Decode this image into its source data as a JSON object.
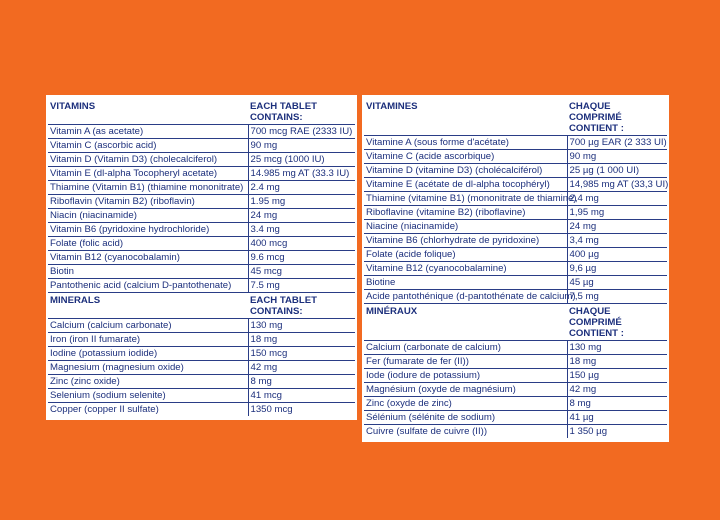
{
  "english": {
    "vitamins_header": "VITAMINS",
    "vitamins_amount_header": "EACH TABLET CONTAINS:",
    "vitamins": [
      [
        "Vitamin A (as acetate)",
        "700 mcg RAE (2333 IU)"
      ],
      [
        "Vitamin C (ascorbic acid)",
        "90 mg"
      ],
      [
        "Vitamin D (Vitamin D3) (cholecalciferol)",
        "25 mcg (1000 IU)"
      ],
      [
        "Vitamin E (dl-alpha Tocopheryl acetate)",
        "14.985 mg AT (33.3 IU)"
      ],
      [
        "Thiamine (Vitamin B1) (thiamine mononitrate)",
        "2.4 mg"
      ],
      [
        "Riboflavin (Vitamin B2) (riboflavin)",
        "1.95 mg"
      ],
      [
        "Niacin (niacinamide)",
        "24 mg"
      ],
      [
        "Vitamin B6 (pyridoxine hydrochloride)",
        "3.4 mg"
      ],
      [
        "Folate (folic acid)",
        "400 mcg"
      ],
      [
        "Vitamin B12 (cyanocobalamin)",
        "9.6 mcg"
      ],
      [
        "Biotin",
        "45 mcg"
      ],
      [
        "Pantothenic acid (calcium D-pantothenate)",
        "7.5 mg"
      ]
    ],
    "minerals_header": "MINERALS",
    "minerals_amount_header": "EACH TABLET CONTAINS:",
    "minerals": [
      [
        "Calcium (calcium carbonate)",
        "130 mg"
      ],
      [
        "Iron (iron II fumarate)",
        "18 mg"
      ],
      [
        "Iodine (potassium iodide)",
        "150 mcg"
      ],
      [
        "Magnesium (magnesium oxide)",
        "42 mg"
      ],
      [
        "Zinc (zinc oxide)",
        "8 mg"
      ],
      [
        "Selenium (sodium selenite)",
        "41 mcg"
      ],
      [
        "Copper (copper II sulfate)",
        "1350 mcg"
      ]
    ]
  },
  "french": {
    "vitamins_header": "VITAMINES",
    "vitamins_amount_header": "CHAQUE COMPRIMÉ CONTIENT :",
    "vitamins": [
      [
        "Vitamine A (sous forme d'acétate)",
        "700 µg EAR (2 333 UI)"
      ],
      [
        "Vitamine C (acide ascorbique)",
        "90 mg"
      ],
      [
        "Vitamine D (vitamine D3) (cholécalciférol)",
        "25 µg (1 000 UI)"
      ],
      [
        "Vitamine E (acétate de dl-alpha tocophéryl)",
        "14,985 mg AT (33,3 UI)"
      ],
      [
        "Thiamine (vitamine B1) (mononitrate de thiamine)",
        "2,4 mg"
      ],
      [
        "Riboflavine (vitamine B2) (riboflavine)",
        "1,95 mg"
      ],
      [
        "Niacine (niacinamide)",
        "24 mg"
      ],
      [
        "Vitamine B6 (chlorhydrate de pyridoxine)",
        "3,4 mg"
      ],
      [
        "Folate (acide folique)",
        "400 µg"
      ],
      [
        "Vitamine B12 (cyanocobalamine)",
        "9,6 µg"
      ],
      [
        "Biotine",
        "45 µg"
      ],
      [
        "Acide pantothénique (d-pantothénate de calcium)",
        "7,5 mg"
      ]
    ],
    "minerals_header": "MINÉRAUX",
    "minerals_amount_header": "CHAQUE COMPRIMÉ CONTIENT :",
    "minerals": [
      [
        "Calcium (carbonate de calcium)",
        "130 mg"
      ],
      [
        "Fer (fumarate de fer (II))",
        "18 mg"
      ],
      [
        "Iode (iodure de potassium)",
        "150 µg"
      ],
      [
        "Magnésium (oxyde de magnésium)",
        "42 mg"
      ],
      [
        "Zinc (oxyde de zinc)",
        "8 mg"
      ],
      [
        "Sélénium (sélénite de sodium)",
        "41 µg"
      ],
      [
        "Cuivre (sulfate de cuivre (II))",
        "1 350 µg"
      ]
    ]
  },
  "colors": {
    "background": "#f26a21",
    "panel": "#ffffff",
    "text": "#1c2f7c"
  }
}
